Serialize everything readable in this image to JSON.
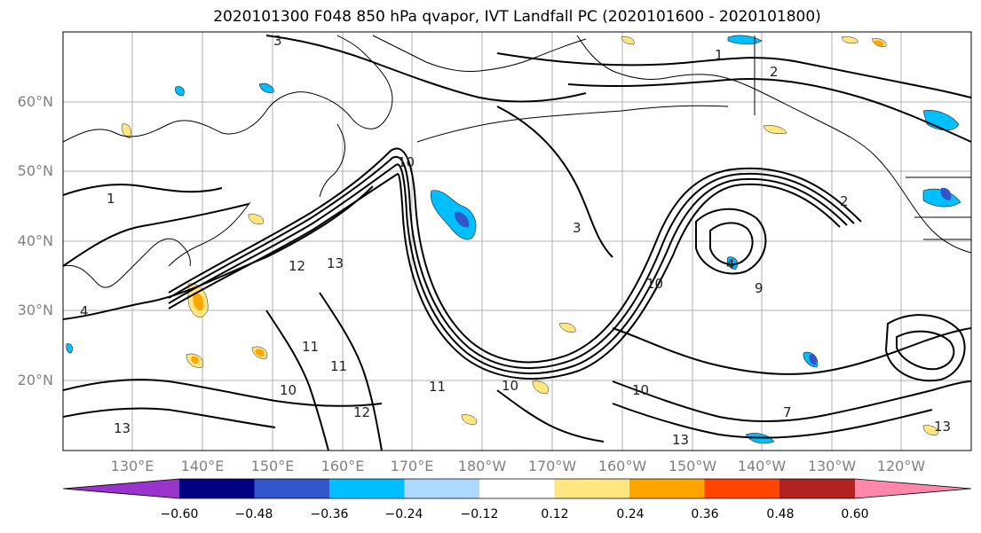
{
  "title": "2020101300 F048 850 hPa qvapor, IVT Landfall PC (2020101600 - 2020101800)",
  "map": {
    "lat_ticks": [
      "60°N",
      "50°N",
      "40°N",
      "30°N",
      "20°N"
    ],
    "lon_ticks": [
      "130°E",
      "140°E",
      "150°E",
      "160°E",
      "170°E",
      "180°W",
      "170°W",
      "160°W",
      "150°W",
      "140°W",
      "130°W",
      "120°W"
    ],
    "contour_labels": [
      "3",
      "1",
      "2",
      "1",
      "10",
      "13",
      "12",
      "3",
      "2",
      "4",
      "10",
      "11",
      "13",
      "11",
      "10",
      "11",
      "12",
      "9",
      "13",
      "10",
      "10",
      "13",
      "7",
      "4"
    ]
  },
  "colorbar": {
    "tick_labels": [
      "−0.60",
      "−0.48",
      "−0.36",
      "−0.24",
      "−0.12",
      "0.12",
      "0.24",
      "0.36",
      "0.48",
      "0.60"
    ],
    "colors": [
      "#9933cc",
      "#000080",
      "#3355cc",
      "#00bfff",
      "#add8ff",
      "#ffffff",
      "#ffe680",
      "#ffa500",
      "#ff4500",
      "#b22222",
      "#ff88aa"
    ]
  }
}
